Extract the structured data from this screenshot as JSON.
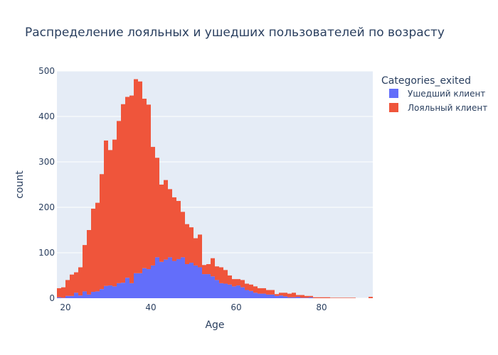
{
  "chart_data": {
    "type": "bar",
    "mode": "stacked-histogram",
    "title": "Распределение лояльных и ушедших пользователей по возрасту",
    "xlabel": "Age",
    "ylabel": "count",
    "xlim": [
      18,
      92
    ],
    "ylim": [
      0,
      500
    ],
    "xticks": [
      20,
      40,
      60,
      80
    ],
    "yticks": [
      0,
      100,
      200,
      300,
      400,
      500
    ],
    "grid": true,
    "legend_title": "Categories_exited",
    "legend_position": "right",
    "bin_width": 1,
    "x": [
      18,
      19,
      20,
      21,
      22,
      23,
      24,
      25,
      26,
      27,
      28,
      29,
      30,
      31,
      32,
      33,
      34,
      35,
      36,
      37,
      38,
      39,
      40,
      41,
      42,
      43,
      44,
      45,
      46,
      47,
      48,
      49,
      50,
      51,
      52,
      53,
      54,
      55,
      56,
      57,
      58,
      59,
      60,
      61,
      62,
      63,
      64,
      65,
      66,
      67,
      68,
      69,
      70,
      71,
      72,
      73,
      74,
      75,
      76,
      77,
      78,
      79,
      80,
      81,
      82,
      83,
      84,
      85,
      86,
      87,
      88,
      89,
      90,
      91
    ],
    "series": [
      {
        "name": "Ушедший клиент",
        "color": "#636efa",
        "values": [
          2,
          1,
          5,
          5,
          12,
          6,
          15,
          8,
          14,
          15,
          20,
          27,
          28,
          26,
          33,
          34,
          45,
          33,
          55,
          55,
          66,
          64,
          72,
          90,
          80,
          85,
          90,
          82,
          86,
          90,
          75,
          78,
          72,
          68,
          53,
          53,
          48,
          40,
          33,
          32,
          30,
          26,
          28,
          24,
          18,
          16,
          12,
          10,
          10,
          8,
          8,
          5,
          6,
          4,
          2,
          2,
          3,
          1,
          1,
          2,
          0,
          0,
          0,
          0,
          0,
          0,
          0,
          0,
          0,
          0,
          0,
          0,
          0,
          0
        ]
      },
      {
        "name": "Лояльный клиент",
        "color": "#ef553b",
        "values": [
          20,
          23,
          35,
          47,
          45,
          62,
          102,
          142,
          183,
          195,
          253,
          320,
          298,
          323,
          357,
          393,
          398,
          413,
          427,
          422,
          373,
          362,
          261,
          219,
          170,
          175,
          150,
          140,
          128,
          100,
          88,
          78,
          60,
          72,
          20,
          22,
          40,
          30,
          35,
          30,
          20,
          16,
          14,
          16,
          14,
          14,
          14,
          12,
          12,
          10,
          10,
          4,
          6,
          8,
          8,
          10,
          4,
          6,
          4,
          3,
          2,
          2,
          2,
          2,
          1,
          1,
          1,
          1,
          1,
          1,
          0,
          0,
          0,
          3
        ]
      }
    ]
  }
}
